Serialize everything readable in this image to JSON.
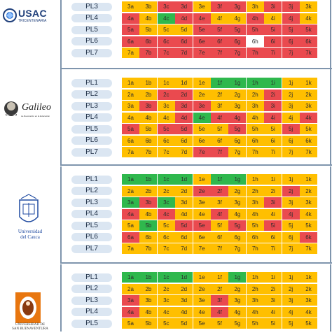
{
  "colors": {
    "r": "#ea4a4f",
    "y": "#ffbf00",
    "g": "#2fb84d",
    "w": "#ffffff"
  },
  "cols": [
    "a",
    "b",
    "c",
    "d",
    "e",
    "f",
    "g",
    "h",
    "i",
    "j",
    "k"
  ],
  "logos": {
    "usac": {
      "name": "USAC",
      "sub": "TRICENTENARIA"
    },
    "galileo": {
      "name": "Galileo",
      "sub": "La Revolución en la Educación"
    },
    "cauca": {
      "line1": "Universidad",
      "line2": "del Cauca"
    },
    "sanbuenaventura": {
      "line1": "UNIVERSIDAD DE",
      "line2": "SAN BUENAVENTURA"
    }
  },
  "panels": [
    {
      "id": "usac",
      "rows": [
        {
          "label": "PL3",
          "num": 3,
          "cells": "yyrryrryrry"
        },
        {
          "label": "PL4",
          "num": 4,
          "cells": "rygrryyryry"
        },
        {
          "label": "PL5",
          "num": 5,
          "cells": "ryyyrrrrrrr"
        },
        {
          "label": "PL6",
          "num": 6,
          "cells": "rrrrrrrwrrr"
        },
        {
          "label": "PL7",
          "num": 7,
          "cells": "yrrrrrrrrrr"
        }
      ]
    },
    {
      "id": "galileo",
      "rows": [
        {
          "label": "PL1",
          "num": 1,
          "cells": "yyyyyggggyy"
        },
        {
          "label": "PL2",
          "num": 2,
          "cells": "yyrryyyyryy"
        },
        {
          "label": "PL3",
          "num": 3,
          "cells": "yryrryyyryy"
        },
        {
          "label": "PL4",
          "num": 4,
          "cells": "yyyrgrryryr"
        },
        {
          "label": "PL5",
          "num": 5,
          "cells": "ryrryyryyry"
        },
        {
          "label": "PL6",
          "num": 6,
          "cells": "yyyyyyyyyyy"
        },
        {
          "label": "PL7",
          "num": 7,
          "cells": "yyyyrryyyyy"
        }
      ]
    },
    {
      "id": "cauca",
      "rows": [
        {
          "label": "PL1",
          "num": 1,
          "cells": "ggggyggyyyy"
        },
        {
          "label": "PL2",
          "num": 2,
          "cells": "yyyyrryyyry"
        },
        {
          "label": "PL3",
          "num": 3,
          "cells": "grgyyyyyryy"
        },
        {
          "label": "PL4",
          "num": 4,
          "cells": "ryryyryyyry"
        },
        {
          "label": "PL5",
          "num": 5,
          "cells": "ygyrryryryy"
        },
        {
          "label": "PL6",
          "num": 6,
          "cells": "ryyyyyyyyyr"
        },
        {
          "label": "PL7",
          "num": 7,
          "cells": "yyyyyyyyyyy"
        }
      ]
    },
    {
      "id": "sanbuenaventura",
      "rows": [
        {
          "label": "PL1",
          "num": 1,
          "cells": "ggggyygyyyy"
        },
        {
          "label": "PL2",
          "num": 2,
          "cells": "yyyyyyyyyyy"
        },
        {
          "label": "PL3",
          "num": 3,
          "cells": "ryyyyryyyyy"
        },
        {
          "label": "PL4",
          "num": 4,
          "cells": "ryyyyryyyyy"
        },
        {
          "label": "PL5",
          "num": 5,
          "cells": "yyyyyyyyyyy"
        }
      ]
    }
  ]
}
